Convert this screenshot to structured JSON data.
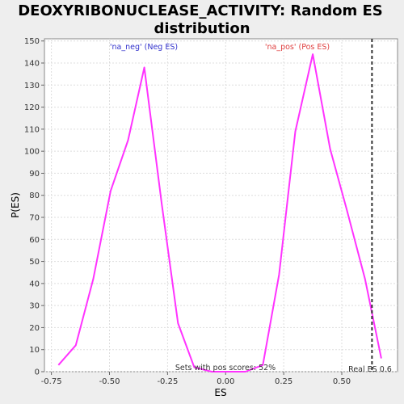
{
  "chart_data": {
    "type": "line",
    "title_line1": "DEOXYRIBONUCLEASE_ACTIVITY: Random ES",
    "title_line2": "distribution",
    "xlabel": "ES",
    "ylabel": "P(ES)",
    "xlim": [
      -0.78,
      0.74
    ],
    "ylim": [
      0,
      151
    ],
    "x_ticks": [
      -0.75,
      -0.5,
      -0.25,
      0.0,
      0.25,
      0.5
    ],
    "x_tick_labels": [
      "-0.75",
      "-0.50",
      "-0.25",
      "0.00",
      "0.25",
      "0.50"
    ],
    "y_ticks": [
      0,
      10,
      20,
      30,
      40,
      50,
      60,
      70,
      80,
      90,
      100,
      110,
      120,
      130,
      140,
      150
    ],
    "y_tick_labels": [
      "0",
      "10",
      "20",
      "30",
      "40",
      "50",
      "60",
      "70",
      "80",
      "90",
      "100",
      "110",
      "120",
      "130",
      "140",
      "150"
    ],
    "grid": true,
    "series": [
      {
        "color": "#ff33ff",
        "x": [
          -0.72,
          -0.645,
          -0.57,
          -0.495,
          -0.42,
          -0.35,
          -0.275,
          -0.205,
          -0.135,
          -0.06,
          0.01,
          0.085,
          0.16,
          0.23,
          0.3,
          0.375,
          0.45,
          0.52,
          0.6,
          0.67
        ],
        "y": [
          3,
          12,
          42,
          82,
          105,
          138,
          76,
          22,
          2,
          0,
          0,
          0,
          3,
          44,
          109,
          144,
          101,
          74,
          42,
          6
        ]
      }
    ],
    "real_es": 0.63,
    "annotations": {
      "neg_label": "'na_neg' (Neg ES)",
      "pos_label": "'na_pos' (Pos ES)",
      "sets_label": "Sets with pos scores: 52%",
      "real_es_label": "Real ES 0.6"
    },
    "colors": {
      "line": "#ff33ff",
      "neg": "#3333cc",
      "pos": "#e04040",
      "real_es_line": "#333333",
      "grid": "#dddddd",
      "plot_bg": "#ffffff",
      "page_bg": "#eeeeee"
    }
  }
}
